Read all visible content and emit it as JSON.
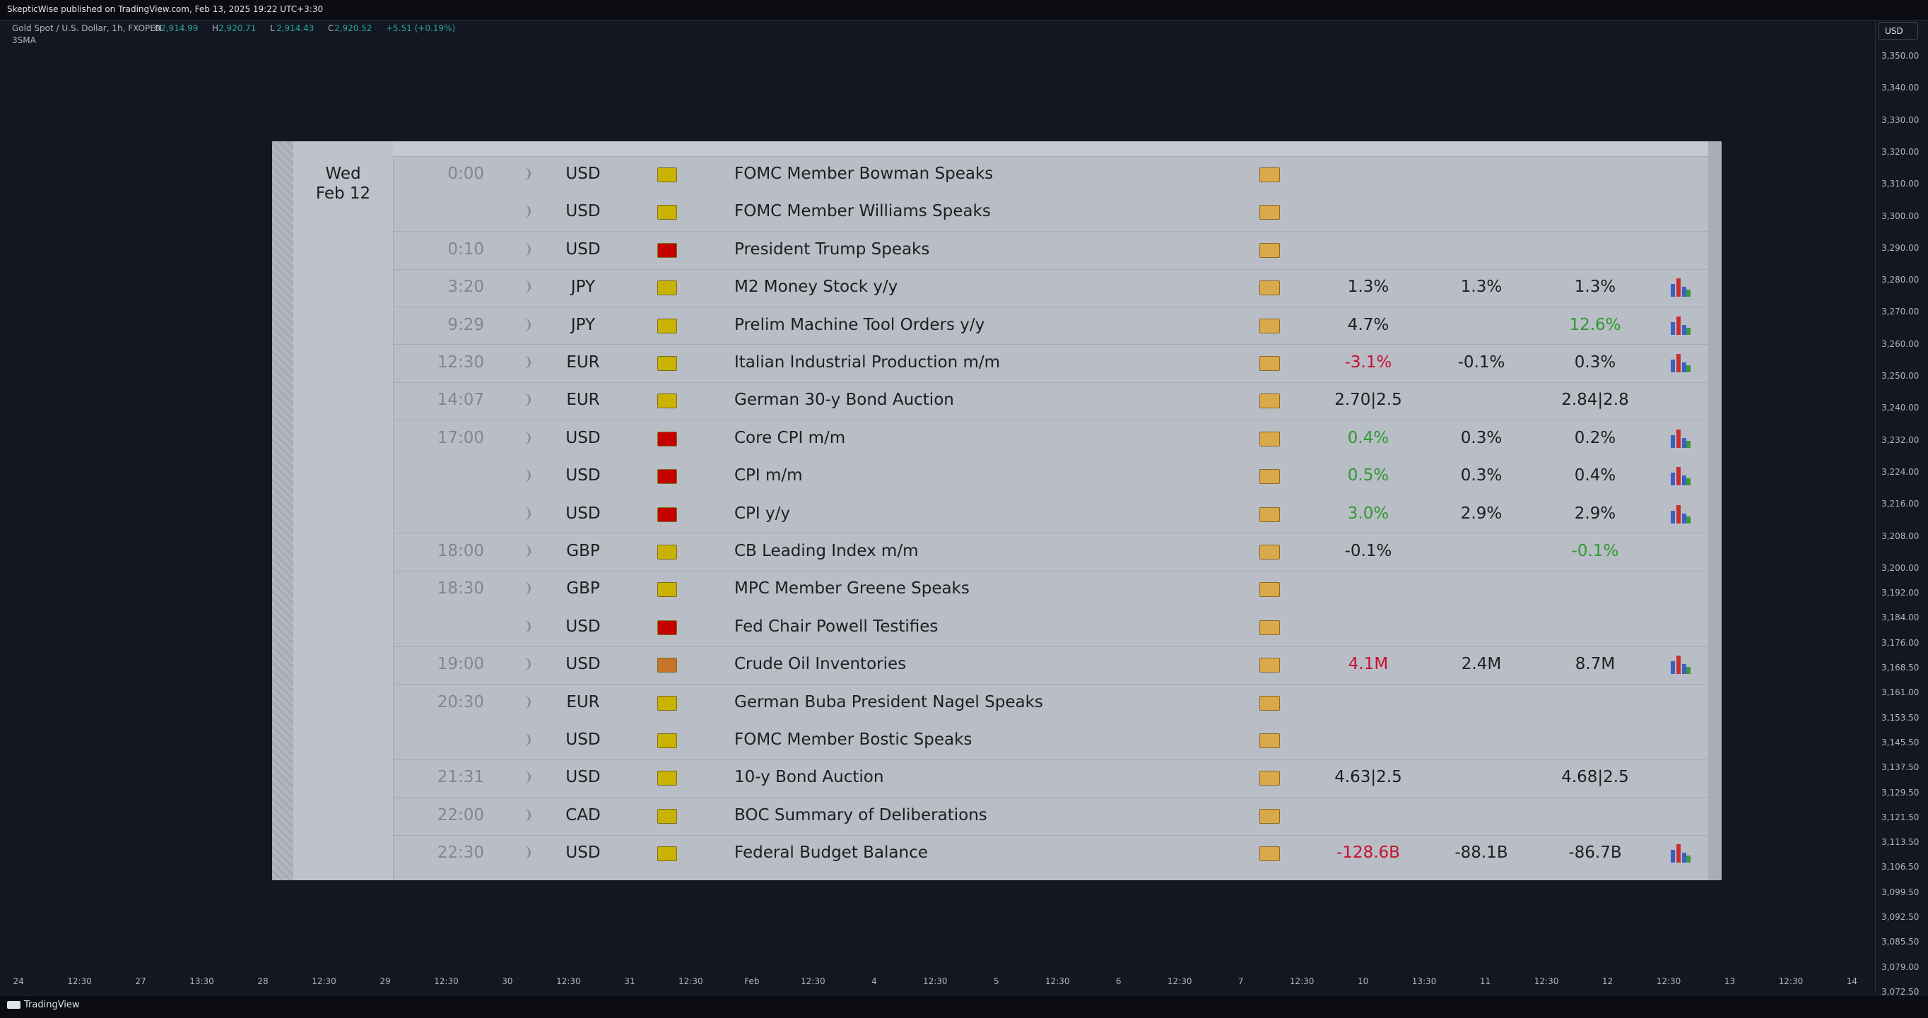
{
  "header": {
    "published": "SkepticWise published on TradingView.com, Feb 13, 2025 19:22 UTC+3:30"
  },
  "legend": {
    "symbol": "Gold Spot / U.S. Dollar, 1h, FXOPEN",
    "ohlc": [
      {
        "label": "O",
        "value": "2,914.99"
      },
      {
        "label": "H",
        "value": "2,920.71"
      },
      {
        "label": "L",
        "value": "2,914.43"
      },
      {
        "label": "C",
        "value": "2,920.52"
      }
    ],
    "change": "+5.51 (+0.19%)",
    "indicator": "3SMA"
  },
  "currency_button": "USD",
  "price_axis": [
    "3,350.00",
    "3,340.00",
    "3,330.00",
    "3,320.00",
    "3,310.00",
    "3,300.00",
    "3,290.00",
    "3,280.00",
    "3,270.00",
    "3,260.00",
    "3,250.00",
    "3,240.00",
    "3,232.00",
    "3,224.00",
    "3,216.00",
    "3,208.00",
    "3,200.00",
    "3,192.00",
    "3,184.00",
    "3,176.00",
    "3,168.50",
    "3,161.00",
    "3,153.50",
    "3,145.50",
    "3,137.50",
    "3,129.50",
    "3,121.50",
    "3,113.50",
    "3,106.50",
    "3,099.50",
    "3,092.50",
    "3,085.50",
    "3,079.00",
    "3,072.50"
  ],
  "time_axis": [
    "24",
    "12:30",
    "27",
    "13:30",
    "28",
    "12:30",
    "29",
    "12:30",
    "30",
    "12:30",
    "31",
    "12:30",
    "Feb",
    "12:30",
    "4",
    "12:30",
    "5",
    "12:30",
    "6",
    "12:30",
    "7",
    "12:30",
    "10",
    "13:30",
    "11",
    "12:30",
    "12",
    "12:30",
    "13",
    "12:30",
    "14"
  ],
  "footer": {
    "brand": "TradingView"
  },
  "calendar": {
    "day": "Wed",
    "date": "Feb 12",
    "rows": [
      {
        "time": "0:00",
        "currency": "USD",
        "impact": "#c9b200",
        "event": "FOMC Member Bowman Speaks"
      },
      {
        "currency": "USD",
        "impact": "#c9b200",
        "event": "FOMC Member Williams Speaks"
      },
      {
        "time": "0:10",
        "currency": "USD",
        "impact": "#c40000",
        "event": "President Trump Speaks"
      },
      {
        "time": "3:20",
        "currency": "JPY",
        "impact": "#c9b200",
        "event": "M2 Money Stock y/y",
        "actual": "1.3%",
        "forecast": "1.3%",
        "previous": "1.3%",
        "chart": true
      },
      {
        "time": "9:29",
        "currency": "JPY",
        "impact": "#c9b200",
        "event": "Prelim Machine Tool Orders y/y",
        "actual": "4.7%",
        "previous": "12.6%",
        "previous_color": "#2e9a2e",
        "chart": true
      },
      {
        "time": "12:30",
        "currency": "EUR",
        "impact": "#c9b200",
        "event": "Italian Industrial Production m/m",
        "actual": "-3.1%",
        "actual_color": "#c8102e",
        "forecast": "-0.1%",
        "previous": "0.3%",
        "chart": true
      },
      {
        "time": "14:07",
        "currency": "EUR",
        "impact": "#c9b200",
        "event": "German 30-y Bond Auction",
        "actual": "2.70|2.5",
        "previous": "2.84|2.8"
      },
      {
        "time": "17:00",
        "currency": "USD",
        "impact": "#c40000",
        "event": "Core CPI m/m",
        "actual": "0.4%",
        "actual_color": "#2e9a2e",
        "forecast": "0.3%",
        "previous": "0.2%",
        "chart": true
      },
      {
        "currency": "USD",
        "impact": "#c40000",
        "event": "CPI m/m",
        "actual": "0.5%",
        "actual_color": "#2e9a2e",
        "forecast": "0.3%",
        "previous": "0.4%",
        "chart": true
      },
      {
        "currency": "USD",
        "impact": "#c40000",
        "event": "CPI y/y",
        "actual": "3.0%",
        "actual_color": "#2e9a2e",
        "forecast": "2.9%",
        "previous": "2.9%",
        "chart": true
      },
      {
        "time": "18:00",
        "currency": "GBP",
        "impact": "#c9b200",
        "event": "CB Leading Index m/m",
        "actual": "-0.1%",
        "previous": "-0.1%",
        "previous_color": "#2e9a2e"
      },
      {
        "time": "18:30",
        "currency": "GBP",
        "impact": "#c9b200",
        "event": "MPC Member Greene Speaks"
      },
      {
        "currency": "USD",
        "impact": "#c40000",
        "event": "Fed Chair Powell Testifies"
      },
      {
        "time": "19:00",
        "currency": "USD",
        "impact": "#c8742a",
        "event": "Crude Oil Inventories",
        "actual": "4.1M",
        "actual_color": "#c8102e",
        "forecast": "2.4M",
        "previous": "8.7M",
        "chart": true
      },
      {
        "time": "20:30",
        "currency": "EUR",
        "impact": "#c9b200",
        "event": "German Buba President Nagel Speaks"
      },
      {
        "currency": "USD",
        "impact": "#c9b200",
        "event": "FOMC Member Bostic Speaks"
      },
      {
        "time": "21:31",
        "currency": "USD",
        "impact": "#c9b200",
        "event": "10-y Bond Auction",
        "actual": "4.63|2.5",
        "previous": "4.68|2.5"
      },
      {
        "time": "22:00",
        "currency": "CAD",
        "impact": "#c9b200",
        "event": "BOC Summary of Deliberations"
      },
      {
        "time": "22:30",
        "currency": "USD",
        "impact": "#c9b200",
        "event": "Federal Budget Balance",
        "actual": "-128.6B",
        "actual_color": "#c8102e",
        "forecast": "-88.1B",
        "previous": "-86.7B",
        "chart": true
      }
    ]
  }
}
